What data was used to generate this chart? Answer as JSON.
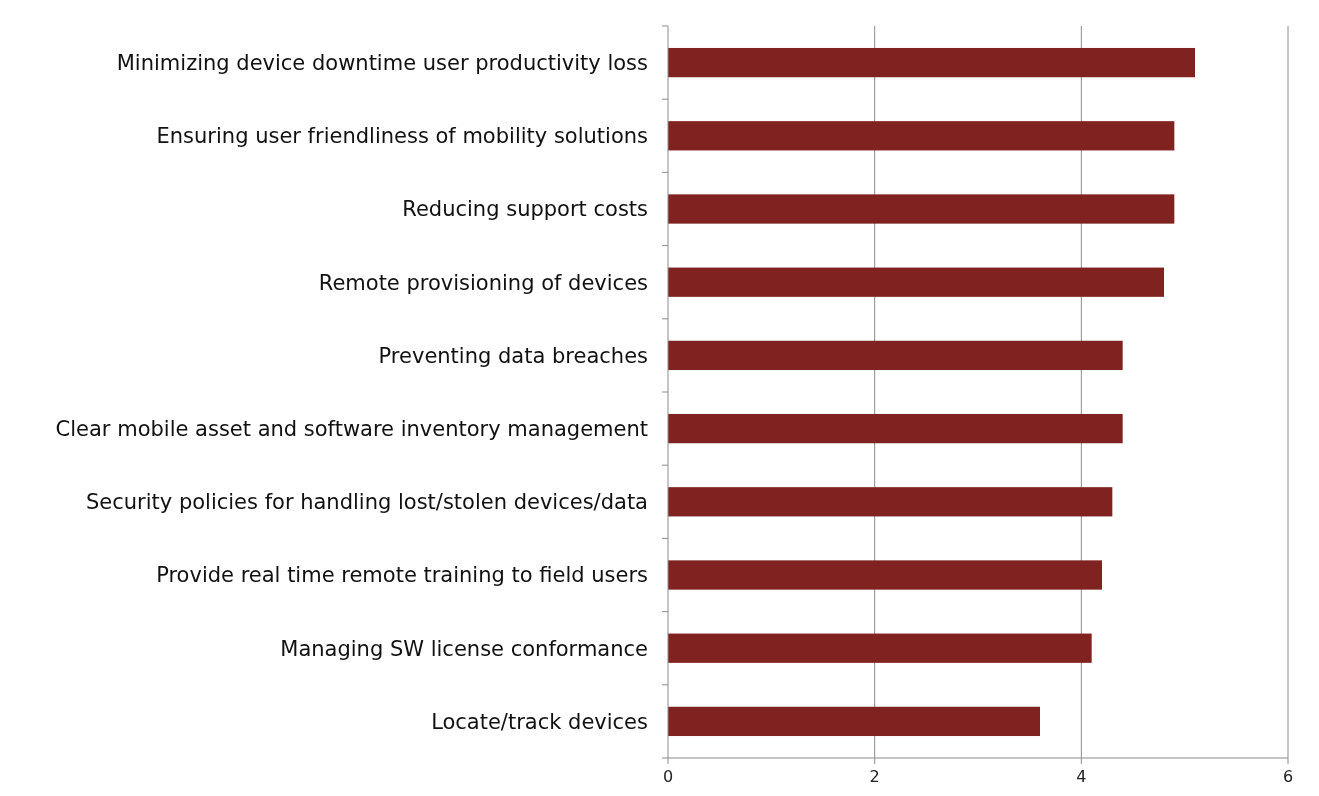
{
  "chart_data": {
    "type": "bar",
    "orientation": "horizontal",
    "categories": [
      "Minimizing device downtime user productivity loss",
      "Ensuring user friendliness of mobility solutions",
      "Reducing support costs",
      "Remote provisioning of devices",
      "Preventing data breaches",
      "Clear mobile asset and software inventory management",
      "Security policies for handling lost/stolen devices/data",
      "Provide real time remote training to field users",
      "Managing SW license conformance",
      "Locate/track devices"
    ],
    "values": [
      5.1,
      4.9,
      4.9,
      4.8,
      4.4,
      4.4,
      4.3,
      4.2,
      4.1,
      3.6
    ],
    "color": "#7f2220",
    "xlim": [
      0,
      6
    ],
    "xticks": [
      0,
      2,
      4,
      6
    ],
    "grid": "x"
  }
}
